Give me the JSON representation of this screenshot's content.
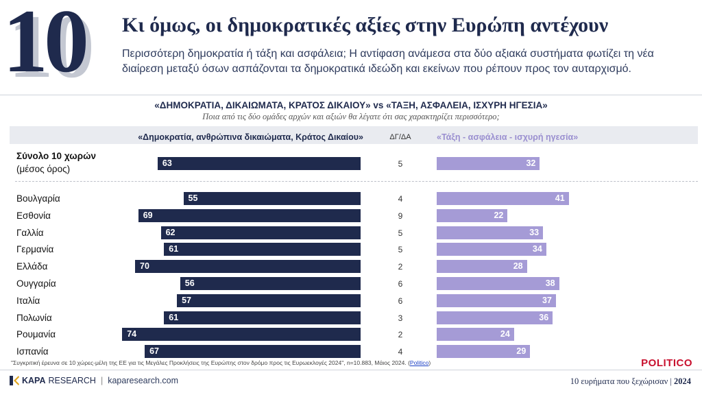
{
  "header": {
    "big_number": "10",
    "title": "Κι όμως, οι δημοκρατικές αξίες στην Ευρώπη αντέχουν",
    "subtitle": "Περισσότερη δημοκρατία ή τάξη και ασφάλεια; Η αντίφαση ανάμεσα στα δύο αξιακά συστήματα φωτίζει τη νέα διαίρεση μεταξύ όσων ασπάζονται τα δημοκρατικά ιδεώδη και εκείνων που ρέπουν προς τον αυταρχισμό."
  },
  "chart_data": {
    "type": "bar",
    "title": "«ΔΗΜΟΚΡΑΤΙΑ, ΔΙΚΑΙΩΜΑΤΑ, ΚΡΑΤΟΣ ΔΙΚΑΙΟΥ» vs «ΤΑΞΗ, ΑΣΦΑΛΕΙΑ, ΙΣΧΥΡΗ ΗΓΕΣΙΑ»",
    "question": "Ποια από τις δύο ομάδες αρχών και αξιών θα λέγατε ότι σας χαρακτηρίζει περισσότερο;",
    "series_left_label": "«Δημοκρατία, ανθρώπινα δικαιώματα, Κράτος Δικαίου»",
    "middle_label": "ΔΓ/ΔΑ",
    "series_right_label": "«Τάξη - ασφάλεια - ισχυρή ηγεσία»",
    "total": {
      "label_bold": "Σύνολο 10 χωρών",
      "label_sub": "(μέσος όρος)",
      "left": 63,
      "mid": 5,
      "right": 32
    },
    "categories": [
      "Βουλγαρία",
      "Εσθονία",
      "Γαλλία",
      "Γερμανία",
      "Ελλάδα",
      "Ουγγαρία",
      "Ιταλία",
      "Πολωνία",
      "Ρουμανία",
      "Ισπανία"
    ],
    "left_values": [
      55,
      69,
      62,
      61,
      70,
      56,
      57,
      61,
      74,
      67
    ],
    "mid_values": [
      4,
      9,
      5,
      5,
      2,
      6,
      6,
      3,
      2,
      4
    ],
    "right_values": [
      41,
      22,
      33,
      34,
      28,
      38,
      37,
      36,
      24,
      29
    ],
    "colors": {
      "left": "#1f2a4d",
      "right": "#a59bd6"
    }
  },
  "footer": {
    "footnote": "\"Συγκριτική έρευνα σε 10  χώρες-μέλη της ΕΕ για τις Μεγάλες Προκλήσεις της Ευρώπης στον δρόμο προς τις Ευρωεκλογές 2024\", n=10.883, Μάιος 2024. (",
    "footnote_link": "Politico",
    "footnote_end": ")",
    "politico": "POLITICO",
    "brand_kapa": "KAPA",
    "brand_research": "RESEARCH",
    "brand_site": "kaparesearch.com",
    "series_tag": "10 ευρήματα που ξεχώρισαν",
    "series_year": "2024"
  }
}
